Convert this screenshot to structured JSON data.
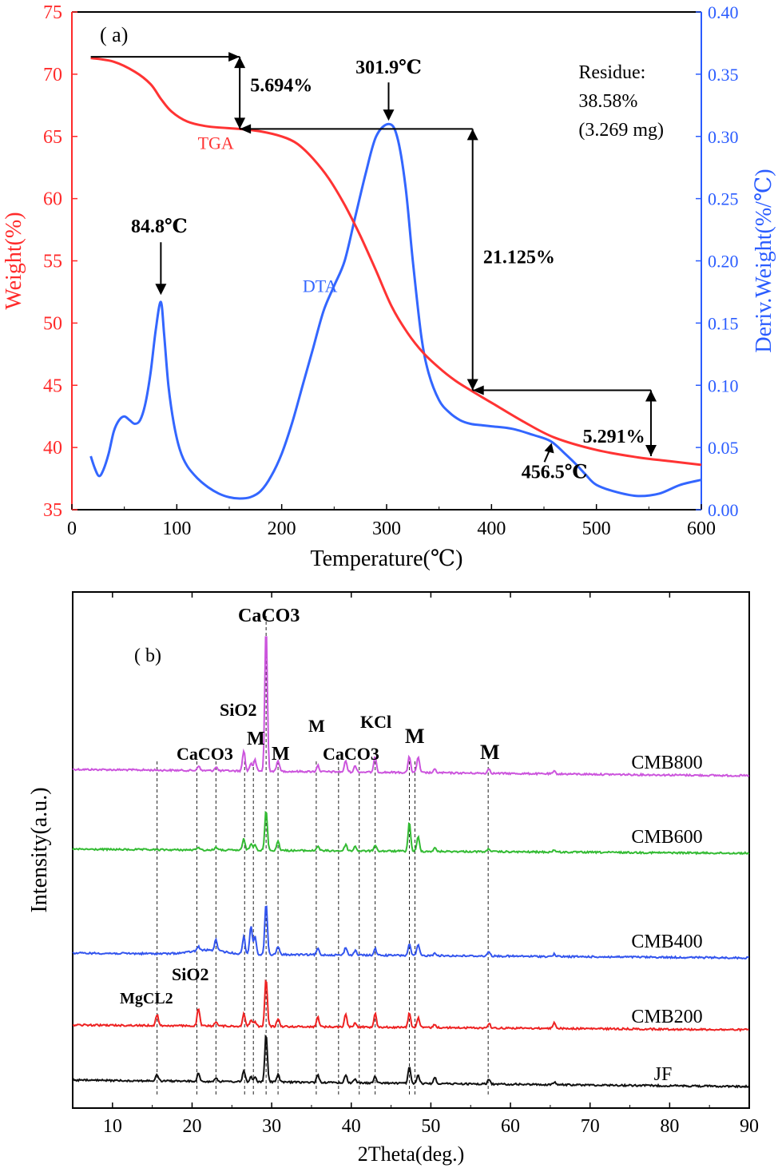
{
  "chart_data": [
    {
      "panel_label": "( a)",
      "type": "line",
      "xlabel": "Temperature(℃)",
      "ylabel": "Weight(%)",
      "ylabel_right": "Deriv.Weight(%/℃)",
      "xlim": [
        0,
        600
      ],
      "ylim": [
        35,
        75
      ],
      "ylim_right": [
        0,
        0.4
      ],
      "x_ticks": [
        "0",
        "100",
        "200",
        "300",
        "400",
        "500",
        "600"
      ],
      "y_ticks": [
        "35",
        "40",
        "45",
        "50",
        "55",
        "60",
        "65",
        "70",
        "75"
      ],
      "y_ticks_right": [
        "0.00",
        "0.05",
        "0.10",
        "0.15",
        "0.20",
        "0.25",
        "0.30",
        "0.35",
        "0.40"
      ],
      "colors": {
        "left_axis": "#ff2a2a",
        "right_axis": "#2a5cff",
        "tga": "#ff3333",
        "dta": "#3366ff"
      },
      "series": [
        {
          "name": "TGA",
          "axis": "left",
          "x": [
            18,
            40,
            60,
            75,
            85,
            95,
            110,
            130,
            160,
            180,
            200,
            215,
            230,
            245,
            260,
            275,
            290,
            305,
            320,
            335,
            350,
            365,
            380,
            400,
            430,
            460,
            500,
            540,
            570,
            600
          ],
          "y": [
            71.3,
            71.0,
            70.2,
            69.2,
            68.0,
            67.0,
            66.2,
            65.8,
            65.6,
            65.4,
            65.0,
            64.4,
            63.2,
            61.6,
            59.5,
            57.0,
            54.2,
            51.3,
            49.2,
            47.6,
            46.4,
            45.4,
            44.6,
            43.6,
            42.1,
            40.8,
            39.8,
            39.2,
            38.9,
            38.6
          ]
        },
        {
          "name": "DTA",
          "axis": "right",
          "x": [
            18,
            22,
            26,
            30,
            35,
            40,
            45,
            50,
            55,
            60,
            65,
            70,
            75,
            80,
            84.8,
            88,
            92,
            97,
            103,
            110,
            120,
            130,
            140,
            150,
            160,
            170,
            180,
            190,
            200,
            210,
            220,
            230,
            240,
            250,
            260,
            270,
            280,
            290,
            301.9,
            310,
            318,
            325,
            333,
            340,
            350,
            360,
            370,
            380,
            390,
            400,
            420,
            440,
            456.5,
            470,
            480,
            490,
            500,
            520,
            540,
            560,
            580,
            600
          ],
          "y": [
            0.043,
            0.033,
            0.027,
            0.032,
            0.045,
            0.063,
            0.072,
            0.075,
            0.072,
            0.069,
            0.072,
            0.085,
            0.11,
            0.145,
            0.167,
            0.14,
            0.1,
            0.07,
            0.048,
            0.035,
            0.025,
            0.018,
            0.013,
            0.01,
            0.009,
            0.01,
            0.015,
            0.027,
            0.045,
            0.07,
            0.1,
            0.13,
            0.16,
            0.18,
            0.2,
            0.235,
            0.27,
            0.3,
            0.31,
            0.3,
            0.26,
            0.2,
            0.14,
            0.11,
            0.088,
            0.078,
            0.072,
            0.069,
            0.068,
            0.067,
            0.065,
            0.06,
            0.055,
            0.045,
            0.037,
            0.028,
            0.02,
            0.014,
            0.011,
            0.013,
            0.02,
            0.024
          ]
        }
      ],
      "annotations": {
        "tga_label": "TGA",
        "dta_label": "DTA",
        "peak1": "84.8℃",
        "peak2": "301.9℃",
        "peak3": "456.5℃",
        "loss1": "5.694%",
        "loss2": "21.125%",
        "loss3": "5.291%",
        "residue": [
          "Residue:",
          "38.58%",
          "(3.269 mg)"
        ]
      }
    },
    {
      "panel_label": "( b)",
      "type": "line",
      "xlabel": "2Theta(deg.)",
      "ylabel": "Intensity(a.u.)",
      "xlim": [
        5,
        90
      ],
      "x_ticks": [
        "10",
        "20",
        "30",
        "40",
        "50",
        "60",
        "70",
        "80",
        "90"
      ],
      "series": [
        {
          "name": "CMB800",
          "color": "#cc55dd"
        },
        {
          "name": "CMB600",
          "color": "#33bb33"
        },
        {
          "name": "CMB400",
          "color": "#3355ee"
        },
        {
          "name": "CMB200",
          "color": "#ee2222"
        },
        {
          "name": "JF",
          "color": "#111111"
        }
      ],
      "reference_lines": [
        15.6,
        20.6,
        23.0,
        26.6,
        27.7,
        29.3,
        30.8,
        35.6,
        38.4,
        41.0,
        43.0,
        47.3,
        48.0,
        57.2
      ],
      "peaks": [
        {
          "x": 15.6,
          "h": [
            0,
            0,
            0,
            14,
            8
          ]
        },
        {
          "x": 20.8,
          "h": [
            6,
            4,
            5,
            22,
            10
          ]
        },
        {
          "x": 23.0,
          "h": [
            5,
            4,
            14,
            6,
            5
          ]
        },
        {
          "x": 26.5,
          "h": [
            26,
            14,
            22,
            16,
            14
          ]
        },
        {
          "x": 27.4,
          "h": [
            10,
            8,
            36,
            8,
            6
          ]
        },
        {
          "x": 27.9,
          "h": [
            14,
            8,
            22,
            6,
            6
          ]
        },
        {
          "x": 29.3,
          "h": [
            180,
            50,
            65,
            60,
            60
          ]
        },
        {
          "x": 30.8,
          "h": [
            14,
            12,
            10,
            10,
            10
          ]
        },
        {
          "x": 35.8,
          "h": [
            8,
            6,
            8,
            12,
            10
          ]
        },
        {
          "x": 39.3,
          "h": [
            14,
            8,
            10,
            16,
            10
          ]
        },
        {
          "x": 40.5,
          "h": [
            8,
            6,
            6,
            6,
            5
          ]
        },
        {
          "x": 43.0,
          "h": [
            20,
            8,
            8,
            18,
            8
          ]
        },
        {
          "x": 47.3,
          "h": [
            20,
            36,
            14,
            18,
            20
          ]
        },
        {
          "x": 48.4,
          "h": [
            20,
            18,
            14,
            12,
            10
          ]
        },
        {
          "x": 50.5,
          "h": [
            4,
            4,
            4,
            4,
            8
          ]
        },
        {
          "x": 57.3,
          "h": [
            6,
            4,
            6,
            6,
            6
          ]
        },
        {
          "x": 65.5,
          "h": [
            3,
            3,
            3,
            8,
            3
          ]
        }
      ],
      "phase_labels": [
        "CaCO3",
        "SiO2",
        "M",
        "M",
        "CaCO3",
        "M",
        "KCl",
        "CaCO3",
        "M",
        "M",
        "MgCL2",
        "SiO2"
      ]
    }
  ]
}
